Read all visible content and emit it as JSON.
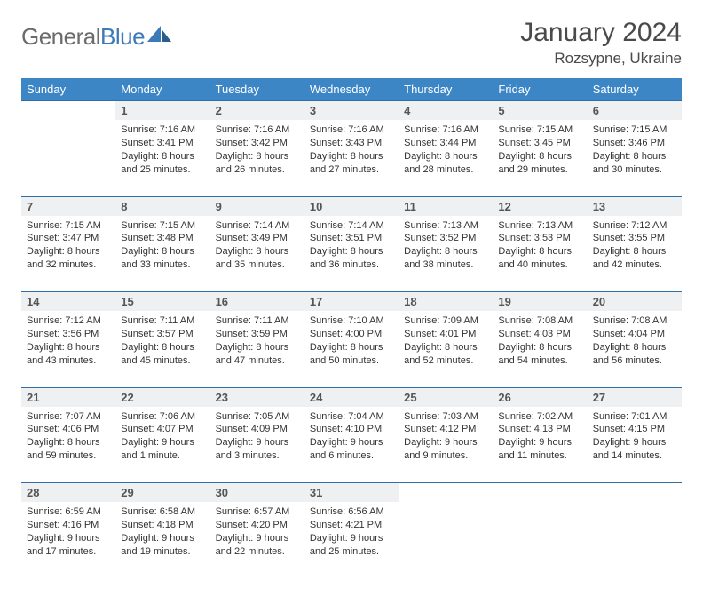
{
  "brand": {
    "text1": "General",
    "text2": "Blue",
    "color1": "#6b6b6b",
    "color2": "#3d7ab8"
  },
  "title": "January 2024",
  "location": "Rozsypne, Ukraine",
  "header_bg": "#3d86c6",
  "header_fg": "#ffffff",
  "daynum_bg": "#eef0f2",
  "rule_color": "#2f6fa8",
  "weekdays": [
    "Sunday",
    "Monday",
    "Tuesday",
    "Wednesday",
    "Thursday",
    "Friday",
    "Saturday"
  ],
  "weeks": [
    {
      "days": [
        {
          "n": "",
          "lines": [
            "",
            "",
            "",
            ""
          ]
        },
        {
          "n": "1",
          "lines": [
            "Sunrise: 7:16 AM",
            "Sunset: 3:41 PM",
            "Daylight: 8 hours",
            "and 25 minutes."
          ]
        },
        {
          "n": "2",
          "lines": [
            "Sunrise: 7:16 AM",
            "Sunset: 3:42 PM",
            "Daylight: 8 hours",
            "and 26 minutes."
          ]
        },
        {
          "n": "3",
          "lines": [
            "Sunrise: 7:16 AM",
            "Sunset: 3:43 PM",
            "Daylight: 8 hours",
            "and 27 minutes."
          ]
        },
        {
          "n": "4",
          "lines": [
            "Sunrise: 7:16 AM",
            "Sunset: 3:44 PM",
            "Daylight: 8 hours",
            "and 28 minutes."
          ]
        },
        {
          "n": "5",
          "lines": [
            "Sunrise: 7:15 AM",
            "Sunset: 3:45 PM",
            "Daylight: 8 hours",
            "and 29 minutes."
          ]
        },
        {
          "n": "6",
          "lines": [
            "Sunrise: 7:15 AM",
            "Sunset: 3:46 PM",
            "Daylight: 8 hours",
            "and 30 minutes."
          ]
        }
      ]
    },
    {
      "days": [
        {
          "n": "7",
          "lines": [
            "Sunrise: 7:15 AM",
            "Sunset: 3:47 PM",
            "Daylight: 8 hours",
            "and 32 minutes."
          ]
        },
        {
          "n": "8",
          "lines": [
            "Sunrise: 7:15 AM",
            "Sunset: 3:48 PM",
            "Daylight: 8 hours",
            "and 33 minutes."
          ]
        },
        {
          "n": "9",
          "lines": [
            "Sunrise: 7:14 AM",
            "Sunset: 3:49 PM",
            "Daylight: 8 hours",
            "and 35 minutes."
          ]
        },
        {
          "n": "10",
          "lines": [
            "Sunrise: 7:14 AM",
            "Sunset: 3:51 PM",
            "Daylight: 8 hours",
            "and 36 minutes."
          ]
        },
        {
          "n": "11",
          "lines": [
            "Sunrise: 7:13 AM",
            "Sunset: 3:52 PM",
            "Daylight: 8 hours",
            "and 38 minutes."
          ]
        },
        {
          "n": "12",
          "lines": [
            "Sunrise: 7:13 AM",
            "Sunset: 3:53 PM",
            "Daylight: 8 hours",
            "and 40 minutes."
          ]
        },
        {
          "n": "13",
          "lines": [
            "Sunrise: 7:12 AM",
            "Sunset: 3:55 PM",
            "Daylight: 8 hours",
            "and 42 minutes."
          ]
        }
      ]
    },
    {
      "days": [
        {
          "n": "14",
          "lines": [
            "Sunrise: 7:12 AM",
            "Sunset: 3:56 PM",
            "Daylight: 8 hours",
            "and 43 minutes."
          ]
        },
        {
          "n": "15",
          "lines": [
            "Sunrise: 7:11 AM",
            "Sunset: 3:57 PM",
            "Daylight: 8 hours",
            "and 45 minutes."
          ]
        },
        {
          "n": "16",
          "lines": [
            "Sunrise: 7:11 AM",
            "Sunset: 3:59 PM",
            "Daylight: 8 hours",
            "and 47 minutes."
          ]
        },
        {
          "n": "17",
          "lines": [
            "Sunrise: 7:10 AM",
            "Sunset: 4:00 PM",
            "Daylight: 8 hours",
            "and 50 minutes."
          ]
        },
        {
          "n": "18",
          "lines": [
            "Sunrise: 7:09 AM",
            "Sunset: 4:01 PM",
            "Daylight: 8 hours",
            "and 52 minutes."
          ]
        },
        {
          "n": "19",
          "lines": [
            "Sunrise: 7:08 AM",
            "Sunset: 4:03 PM",
            "Daylight: 8 hours",
            "and 54 minutes."
          ]
        },
        {
          "n": "20",
          "lines": [
            "Sunrise: 7:08 AM",
            "Sunset: 4:04 PM",
            "Daylight: 8 hours",
            "and 56 minutes."
          ]
        }
      ]
    },
    {
      "days": [
        {
          "n": "21",
          "lines": [
            "Sunrise: 7:07 AM",
            "Sunset: 4:06 PM",
            "Daylight: 8 hours",
            "and 59 minutes."
          ]
        },
        {
          "n": "22",
          "lines": [
            "Sunrise: 7:06 AM",
            "Sunset: 4:07 PM",
            "Daylight: 9 hours",
            "and 1 minute."
          ]
        },
        {
          "n": "23",
          "lines": [
            "Sunrise: 7:05 AM",
            "Sunset: 4:09 PM",
            "Daylight: 9 hours",
            "and 3 minutes."
          ]
        },
        {
          "n": "24",
          "lines": [
            "Sunrise: 7:04 AM",
            "Sunset: 4:10 PM",
            "Daylight: 9 hours",
            "and 6 minutes."
          ]
        },
        {
          "n": "25",
          "lines": [
            "Sunrise: 7:03 AM",
            "Sunset: 4:12 PM",
            "Daylight: 9 hours",
            "and 9 minutes."
          ]
        },
        {
          "n": "26",
          "lines": [
            "Sunrise: 7:02 AM",
            "Sunset: 4:13 PM",
            "Daylight: 9 hours",
            "and 11 minutes."
          ]
        },
        {
          "n": "27",
          "lines": [
            "Sunrise: 7:01 AM",
            "Sunset: 4:15 PM",
            "Daylight: 9 hours",
            "and 14 minutes."
          ]
        }
      ]
    },
    {
      "days": [
        {
          "n": "28",
          "lines": [
            "Sunrise: 6:59 AM",
            "Sunset: 4:16 PM",
            "Daylight: 9 hours",
            "and 17 minutes."
          ]
        },
        {
          "n": "29",
          "lines": [
            "Sunrise: 6:58 AM",
            "Sunset: 4:18 PM",
            "Daylight: 9 hours",
            "and 19 minutes."
          ]
        },
        {
          "n": "30",
          "lines": [
            "Sunrise: 6:57 AM",
            "Sunset: 4:20 PM",
            "Daylight: 9 hours",
            "and 22 minutes."
          ]
        },
        {
          "n": "31",
          "lines": [
            "Sunrise: 6:56 AM",
            "Sunset: 4:21 PM",
            "Daylight: 9 hours",
            "and 25 minutes."
          ]
        },
        {
          "n": "",
          "lines": [
            "",
            "",
            "",
            ""
          ]
        },
        {
          "n": "",
          "lines": [
            "",
            "",
            "",
            ""
          ]
        },
        {
          "n": "",
          "lines": [
            "",
            "",
            "",
            ""
          ]
        }
      ]
    }
  ]
}
